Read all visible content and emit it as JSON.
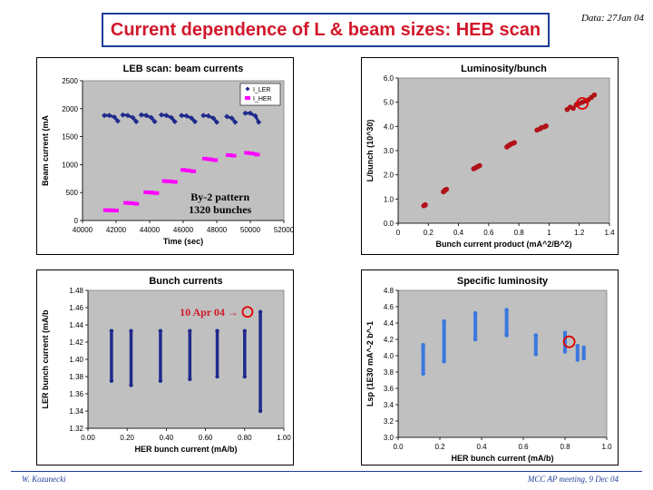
{
  "header": {
    "title": "Current dependence of L & beam sizes: HEB scan",
    "date": "Data: 27Jan 04"
  },
  "footer": {
    "author": "W. Kozanecki",
    "meeting": "MCC AP meeting, 9 Dec 04"
  },
  "colors": {
    "title": "#d1182a",
    "frame": "#1f3d99",
    "plot_area": "#c0c0c0",
    "ler": "#1f2a8c",
    "her": "#ff00ff",
    "lumi": "#b01218",
    "specific": "#3a78e0",
    "marker_circle": "#e00000"
  },
  "chart_data": [
    {
      "id": "beam-currents",
      "type": "scatter",
      "title": "LEB scan: beam currents",
      "xlabel": "Time (sec)",
      "ylabel": "Beam current (mA",
      "xlim": [
        40000,
        52000
      ],
      "ylim": [
        0,
        2500
      ],
      "xticks": [
        40000,
        42000,
        44000,
        46000,
        48000,
        50000,
        52000
      ],
      "yticks": [
        0,
        500,
        1000,
        1500,
        2000,
        2500
      ],
      "grid": false,
      "legend_position": "top-right",
      "annotation": [
        "By-2 pattern",
        "1320 bunches"
      ],
      "series": [
        {
          "name": "I_LER",
          "marker": "diamond",
          "color": "#1f2a8c",
          "segments": [
            {
              "x": [
                41300,
                41600,
                41900,
                42100
              ],
              "y": [
                1880,
                1880,
                1850,
                1780
              ]
            },
            {
              "x": [
                42400,
                42700,
                43000,
                43200
              ],
              "y": [
                1890,
                1880,
                1840,
                1770
              ]
            },
            {
              "x": [
                43500,
                43800,
                44100,
                44300
              ],
              "y": [
                1890,
                1880,
                1840,
                1770
              ]
            },
            {
              "x": [
                44700,
                45000,
                45300,
                45500
              ],
              "y": [
                1890,
                1880,
                1840,
                1770
              ]
            },
            {
              "x": [
                45900,
                46200,
                46500,
                46700
              ],
              "y": [
                1880,
                1870,
                1830,
                1770
              ]
            },
            {
              "x": [
                47200,
                47500,
                47800,
                48000
              ],
              "y": [
                1880,
                1870,
                1830,
                1760
              ]
            },
            {
              "x": [
                48600,
                48900,
                49100
              ],
              "y": [
                1860,
                1830,
                1760
              ]
            },
            {
              "x": [
                49700,
                50000,
                50300,
                50500
              ],
              "y": [
                1920,
                1920,
                1870,
                1760
              ]
            }
          ]
        },
        {
          "name": "I_HER",
          "marker": "square",
          "color": "#ff00ff",
          "segments": [
            {
              "x": [
                41400,
                41700,
                42000
              ],
              "y": [
                185,
                182,
                178
              ]
            },
            {
              "x": [
                42600,
                42900,
                43200
              ],
              "y": [
                315,
                310,
                300
              ]
            },
            {
              "x": [
                43800,
                44100,
                44400
              ],
              "y": [
                505,
                500,
                490
              ]
            },
            {
              "x": [
                44900,
                45200,
                45500
              ],
              "y": [
                705,
                700,
                690
              ]
            },
            {
              "x": [
                46000,
                46300,
                46600
              ],
              "y": [
                905,
                895,
                880
              ]
            },
            {
              "x": [
                47300,
                47600,
                47900
              ],
              "y": [
                1105,
                1095,
                1080
              ]
            },
            {
              "x": [
                48700,
                49000
              ],
              "y": [
                1170,
                1160
              ]
            },
            {
              "x": [
                49800,
                50100,
                50400
              ],
              "y": [
                1210,
                1200,
                1180
              ]
            }
          ]
        }
      ]
    },
    {
      "id": "luminosity-bunch",
      "type": "scatter",
      "title": "Luminosity/bunch",
      "xlabel": "Bunch current product (mA^2/B^2)",
      "ylabel": "L/bunch (10^30)",
      "xlim": [
        0,
        1.4
      ],
      "ylim": [
        0,
        6
      ],
      "xticks": [
        0,
        0.2,
        0.4,
        0.6,
        0.8,
        1,
        1.2,
        1.4
      ],
      "xtick_labels": [
        "0",
        "0.2",
        "0.4",
        "0.6",
        "0.8",
        "1",
        "1.2",
        "1.4"
      ],
      "yticks": [
        0,
        1,
        2,
        3,
        4,
        5,
        6
      ],
      "ytick_labels": [
        "0.0",
        "1.0",
        "2.0",
        "3.0",
        "4.0",
        "5.0",
        "6.0"
      ],
      "grid": false,
      "highlight": {
        "x": 1.22,
        "y": 4.95
      },
      "clusters": [
        {
          "x": [
            0.17,
            0.175,
            0.18
          ],
          "y": [
            0.72,
            0.74,
            0.76
          ]
        },
        {
          "x": [
            0.3,
            0.305,
            0.31,
            0.315,
            0.32
          ],
          "y": [
            1.3,
            1.33,
            1.36,
            1.38,
            1.4
          ]
        },
        {
          "x": [
            0.5,
            0.51,
            0.52,
            0.53,
            0.54
          ],
          "y": [
            2.25,
            2.28,
            2.32,
            2.35,
            2.38
          ]
        },
        {
          "x": [
            0.72,
            0.73,
            0.74,
            0.75,
            0.76,
            0.77
          ],
          "y": [
            3.15,
            3.2,
            3.24,
            3.28,
            3.3,
            3.33
          ]
        },
        {
          "x": [
            0.92,
            0.94,
            0.95,
            0.97,
            0.98
          ],
          "y": [
            3.85,
            3.9,
            3.95,
            3.98,
            4.02
          ]
        },
        {
          "x": [
            1.12,
            1.14,
            1.16,
            1.18,
            1.2,
            1.22,
            1.24,
            1.26,
            1.28,
            1.3
          ],
          "y": [
            4.7,
            4.8,
            4.75,
            4.9,
            4.95,
            5.0,
            5.05,
            5.1,
            5.2,
            5.3
          ]
        }
      ]
    },
    {
      "id": "bunch-currents",
      "type": "scatter",
      "title": "Bunch currents",
      "xlabel": "HER bunch current (mA/b)",
      "ylabel": "LER bunch current (mA/b",
      "xlim": [
        0,
        1
      ],
      "ylim": [
        1.32,
        1.48
      ],
      "xticks": [
        0,
        0.2,
        0.4,
        0.6,
        0.8,
        1
      ],
      "xtick_labels": [
        "0.00",
        "0.20",
        "0.40",
        "0.60",
        "0.80",
        "1.00"
      ],
      "yticks": [
        1.32,
        1.34,
        1.36,
        1.38,
        1.4,
        1.42,
        1.44,
        1.46,
        1.48
      ],
      "ytick_labels": [
        "1.32",
        "1.34",
        "1.36",
        "1.38",
        "1.40",
        "1.42",
        "1.44",
        "1.46",
        "1.48"
      ],
      "grid": false,
      "annotation": "10 Apr 04",
      "highlight": {
        "x": 0.87,
        "y": 1.455
      },
      "columns": [
        {
          "x": 0.12,
          "ymin": 1.375,
          "ymax": 1.433
        },
        {
          "x": 0.22,
          "ymin": 1.37,
          "ymax": 1.433
        },
        {
          "x": 0.37,
          "ymin": 1.375,
          "ymax": 1.433
        },
        {
          "x": 0.52,
          "ymin": 1.377,
          "ymax": 1.433
        },
        {
          "x": 0.66,
          "ymin": 1.38,
          "ymax": 1.433
        },
        {
          "x": 0.8,
          "ymin": 1.38,
          "ymax": 1.433
        },
        {
          "x": 0.88,
          "ymin": 1.34,
          "ymax": 1.455
        }
      ]
    },
    {
      "id": "specific-luminosity",
      "type": "scatter",
      "title": "Specific luminosity",
      "xlabel": "HER bunch current (mA/b)",
      "ylabel": "Lsp (1E30 mA^-2 b^-1",
      "xlim": [
        0,
        1
      ],
      "ylim": [
        3,
        4.8
      ],
      "xticks": [
        0,
        0.2,
        0.4,
        0.6,
        0.8,
        1
      ],
      "xtick_labels": [
        "0.0",
        "0.2",
        "0.4",
        "0.6",
        "0.8",
        "1.0"
      ],
      "yticks": [
        3,
        3.2,
        3.4,
        3.6,
        3.8,
        4,
        4.2,
        4.4,
        4.6,
        4.8
      ],
      "ytick_labels": [
        "3.0",
        "3.2",
        "3.4",
        "3.6",
        "3.8",
        "4.0",
        "4.2",
        "4.4",
        "4.6",
        "4.8"
      ],
      "grid": false,
      "highlight": {
        "x": 0.82,
        "y": 4.17
      },
      "columns": [
        {
          "x": 0.12,
          "ymin": 3.78,
          "ymax": 4.13
        },
        {
          "x": 0.22,
          "ymin": 3.93,
          "ymax": 4.42
        },
        {
          "x": 0.37,
          "ymin": 4.2,
          "ymax": 4.52
        },
        {
          "x": 0.52,
          "ymin": 4.25,
          "ymax": 4.56
        },
        {
          "x": 0.66,
          "ymin": 4.02,
          "ymax": 4.25
        },
        {
          "x": 0.8,
          "ymin": 4.05,
          "ymax": 4.28
        },
        {
          "x": 0.86,
          "ymin": 3.95,
          "ymax": 4.12
        },
        {
          "x": 0.89,
          "ymin": 3.97,
          "ymax": 4.1
        }
      ]
    }
  ]
}
